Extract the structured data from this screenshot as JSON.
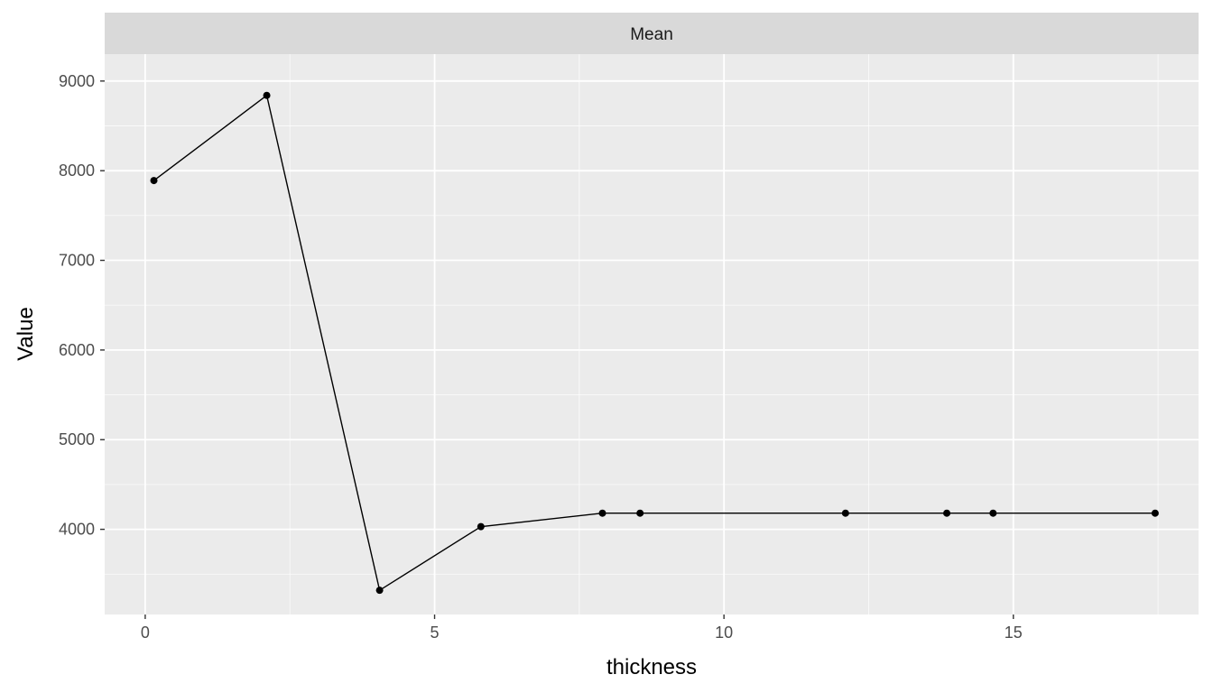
{
  "chart_data": {
    "type": "line",
    "panel_title": "Mean",
    "xlabel": "thickness",
    "ylabel": "Value",
    "xlim": [
      -0.7,
      18.2
    ],
    "ylim": [
      3050,
      9300
    ],
    "x_ticks": [
      0,
      5,
      10,
      15
    ],
    "y_ticks": [
      4000,
      5000,
      6000,
      7000,
      8000,
      9000
    ],
    "grid": true,
    "series": [
      {
        "x": [
          0.15,
          2.1,
          4.05,
          5.8,
          7.9,
          8.55,
          12.1,
          13.85,
          14.65,
          17.45
        ],
        "y": [
          7890,
          8840,
          3320,
          4030,
          4180,
          4180,
          4180,
          4180,
          4180,
          4180
        ]
      }
    ],
    "colors": {
      "panel_bg": "#ebebeb",
      "strip_bg": "#d9d9d9",
      "grid_major": "#ffffff",
      "line": "#000000",
      "point": "#000000"
    }
  }
}
